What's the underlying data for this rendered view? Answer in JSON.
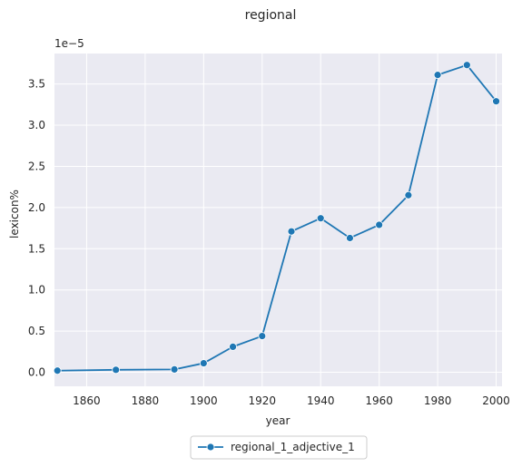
{
  "chart_data": {
    "type": "line",
    "title": "regional",
    "xlabel": "year",
    "ylabel": "lexicon%",
    "y_offset_label": "1e−5",
    "xlim": [
      1849,
      2002
    ],
    "ylim": [
      -0.17,
      3.87
    ],
    "x_ticks": [
      1860,
      1880,
      1900,
      1920,
      1940,
      1960,
      1980,
      2000
    ],
    "y_ticks": [
      0.0,
      0.5,
      1.0,
      1.5,
      2.0,
      2.5,
      3.0,
      3.5
    ],
    "y_tick_labels": [
      "0.0",
      "0.5",
      "1.0",
      "1.5",
      "2.0",
      "2.5",
      "3.0",
      "3.5"
    ],
    "grid": true,
    "legend_position": "bottom-center",
    "colors": {
      "series": "#1f77b4",
      "plot_bg": "#eaeaf2",
      "grid": "#ffffff"
    },
    "series": [
      {
        "name": "regional_1_adjective_1",
        "x": [
          1850,
          1870,
          1890,
          1900,
          1910,
          1920,
          1930,
          1940,
          1950,
          1960,
          1970,
          1980,
          1990,
          2000
        ],
        "y": [
          0.02,
          0.03,
          0.035,
          0.11,
          0.31,
          0.44,
          1.71,
          1.87,
          1.63,
          1.79,
          2.15,
          3.61,
          3.73,
          3.29
        ]
      }
    ]
  }
}
